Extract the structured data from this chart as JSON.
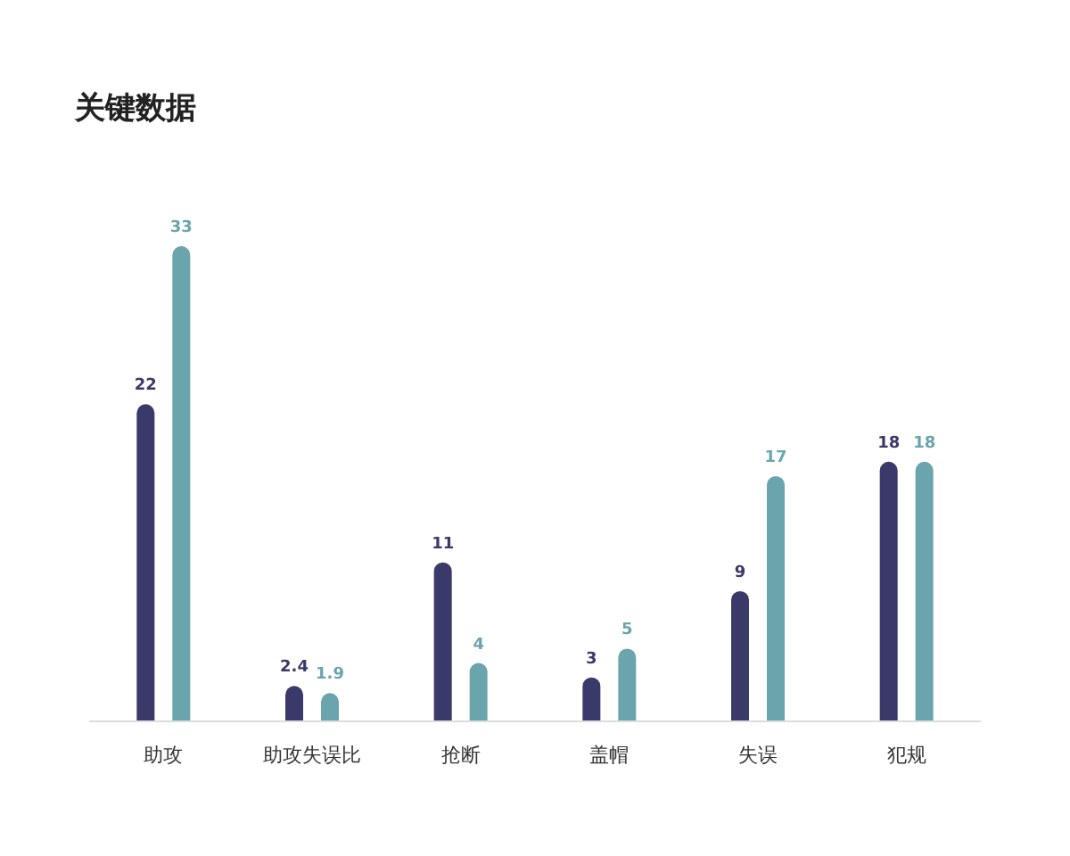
{
  "chart_data": {
    "type": "bar",
    "title": "关键数据",
    "categories": [
      "助攻",
      "助攻失误比",
      "抢断",
      "盖帽",
      "失误",
      "犯规"
    ],
    "series": [
      {
        "color": "#3b3969",
        "values": [
          22,
          2.4,
          11,
          3,
          9,
          18
        ]
      },
      {
        "color": "#6aa5ad",
        "values": [
          33,
          1.9,
          4,
          5,
          17,
          18
        ]
      }
    ],
    "data_labels": true
  }
}
